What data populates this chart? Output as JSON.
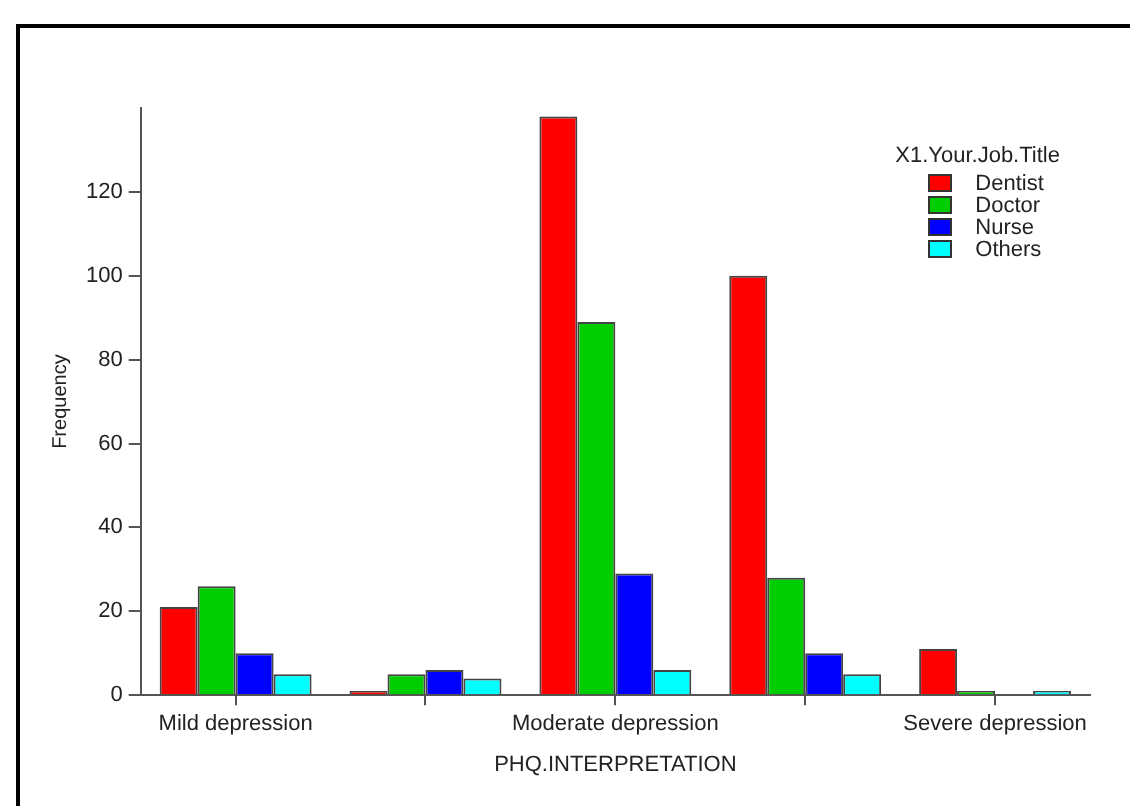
{
  "chart_data": {
    "type": "bar",
    "xlabel": "PHQ.INTERPRETATION",
    "ylabel": "Frequency",
    "legend_title": "X1.Your.Job.Title",
    "categories": [
      "Mild depression",
      null,
      "Moderate depression",
      null,
      "Severe depression"
    ],
    "series": [
      {
        "name": "Dentist",
        "color": "#ff0000",
        "values": [
          21,
          1,
          138,
          100,
          11
        ]
      },
      {
        "name": "Doctor",
        "color": "#00cd00",
        "values": [
          26,
          5,
          89,
          28,
          1
        ]
      },
      {
        "name": "Nurse",
        "color": "#0000ff",
        "values": [
          10,
          6,
          29,
          10,
          0
        ]
      },
      {
        "name": "Others",
        "color": "#00ffff",
        "values": [
          5,
          4,
          6,
          5,
          1
        ]
      }
    ],
    "ylim": [
      0,
      140
    ],
    "yticks": [
      0,
      20,
      40,
      60,
      80,
      100,
      120
    ],
    "grid": false,
    "legend": "top right"
  }
}
